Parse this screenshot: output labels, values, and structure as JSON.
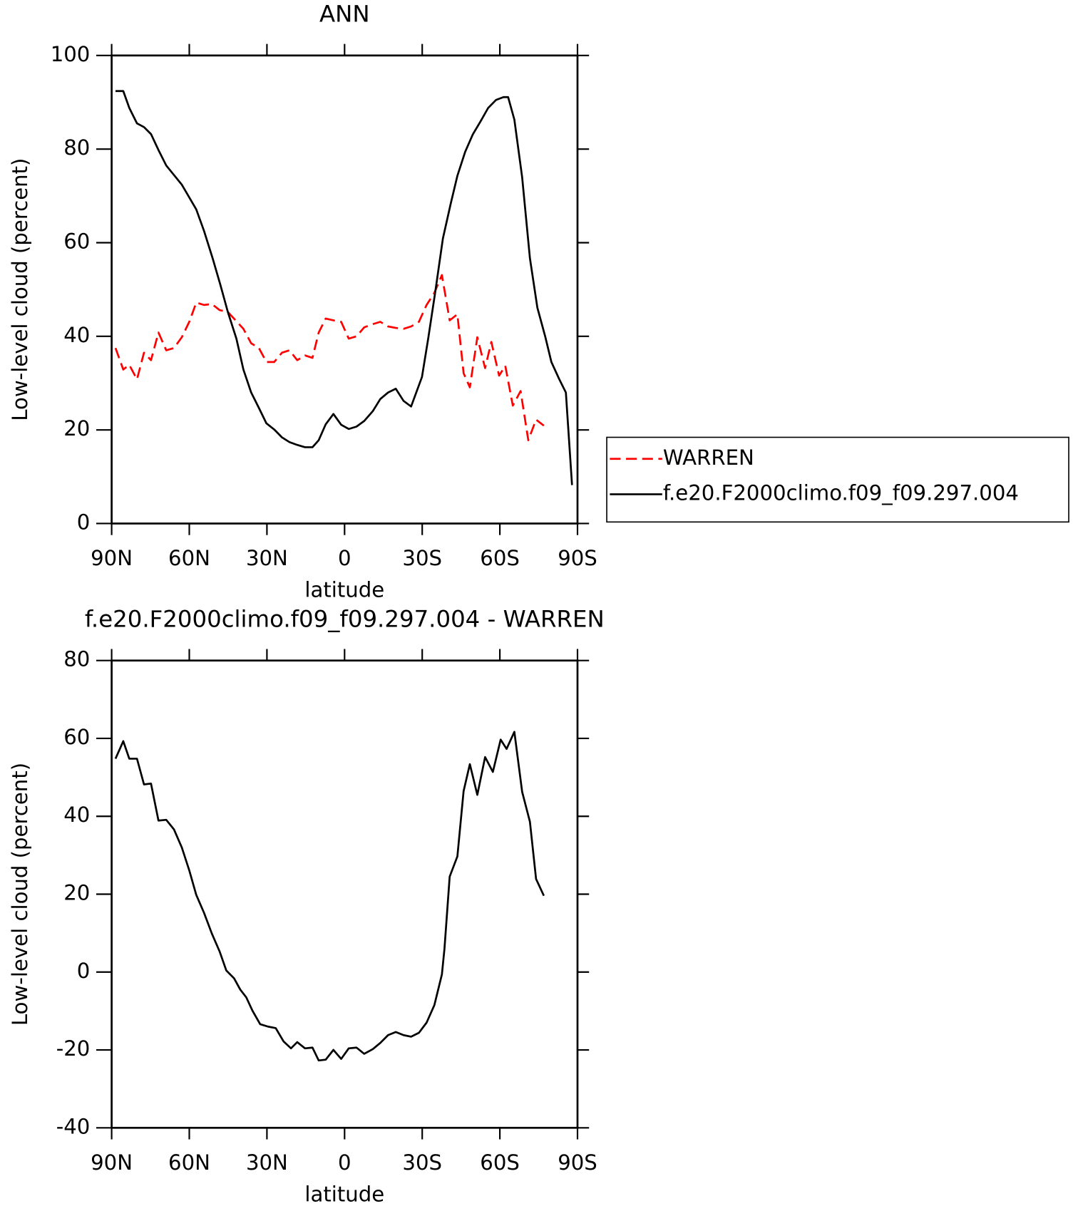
{
  "chart_data": [
    {
      "type": "line",
      "title": "ANN",
      "xlabel": "latitude",
      "ylabel": "Low-level cloud (percent)",
      "xlim": [
        90,
        -90
      ],
      "xticks": [
        {
          "value": 90,
          "label": "90N"
        },
        {
          "value": 60,
          "label": "60N"
        },
        {
          "value": 30,
          "label": "30N"
        },
        0,
        {
          "value": -30,
          "label": "30S"
        },
        {
          "value": -60,
          "label": "60S"
        },
        {
          "value": -90,
          "label": "90S"
        }
      ],
      "ylim": [
        0,
        100
      ],
      "yticks": [
        0,
        20,
        40,
        60,
        80,
        100
      ],
      "legend": "right",
      "series": [
        {
          "name": "WARREN",
          "color": "#ff0000",
          "dash": true,
          "x": [
            88.5,
            85.5,
            83.2,
            80.2,
            77.5,
            74.8,
            71.9,
            68.9,
            65.9,
            62.9,
            60.0,
            57.3,
            54.3,
            51.3,
            48.3,
            45.1,
            42.1,
            39.1,
            36.1,
            33.1,
            30.2,
            27.2,
            24.2,
            21.3,
            18.3,
            15.3,
            12.4,
            10.0,
            7.3,
            4.3,
            1.3,
            -1.6,
            -4.6,
            -7.6,
            -10.9,
            -13.8,
            -16.8,
            -19.8,
            -22.8,
            -25.7,
            -28.7,
            -31.7,
            -34.7,
            -37.6,
            -40.6,
            -43.6,
            -46.0,
            -48.4,
            -51.3,
            -54.3,
            -56.7,
            -59.7,
            -62.1,
            -65.0,
            -68.0,
            -71.0,
            -74.0,
            -77.0
          ],
          "values": [
            37.5,
            32.9,
            33.9,
            30.8,
            36.5,
            34.9,
            40.8,
            37.0,
            37.5,
            39.8,
            43.1,
            47.2,
            46.7,
            46.9,
            45.6,
            45.2,
            43.4,
            41.6,
            38.5,
            37.5,
            34.5,
            34.5,
            36.5,
            37.0,
            34.9,
            35.9,
            35.4,
            40.8,
            43.8,
            43.4,
            43.1,
            39.5,
            40.0,
            41.9,
            42.6,
            43.1,
            42.1,
            41.8,
            41.6,
            42.1,
            43.1,
            46.7,
            49.3,
            53.1,
            43.4,
            44.7,
            32.1,
            29.1,
            39.8,
            33.2,
            38.8,
            31.6,
            33.7,
            25.2,
            28.3,
            17.8,
            22.2,
            20.9
          ]
        },
        {
          "name": "f.e20.F2000climo.f09_f09.297.004",
          "color": "#000000",
          "dash": false,
          "x": [
            88.5,
            85.5,
            83.2,
            80.2,
            77.5,
            74.8,
            71.9,
            68.9,
            62.9,
            57.3,
            54.3,
            51.0,
            48.0,
            45.1,
            41.8,
            39.1,
            36.1,
            33.1,
            30.2,
            27.2,
            24.2,
            21.3,
            18.3,
            15.3,
            12.4,
            10.0,
            7.3,
            4.3,
            1.3,
            -1.6,
            -4.6,
            -7.6,
            -10.9,
            -13.8,
            -16.8,
            -19.8,
            -22.8,
            -25.7,
            -29.9,
            -32.3,
            -35.0,
            -38.0,
            -41.0,
            -43.6,
            -46.6,
            -49.5,
            -52.5,
            -55.5,
            -58.5,
            -61.4,
            -63.2,
            -65.6,
            -68.6,
            -71.6,
            -74.5,
            -77.5,
            -79.9,
            -82.9,
            -85.5,
            -87.9
          ],
          "values": [
            92.4,
            92.4,
            88.8,
            85.5,
            84.7,
            83.2,
            79.8,
            76.5,
            72.4,
            67.1,
            62.5,
            56.7,
            51.0,
            45.2,
            39.5,
            32.9,
            28.0,
            24.7,
            21.4,
            20.1,
            18.4,
            17.4,
            16.8,
            16.3,
            16.3,
            17.8,
            21.2,
            23.4,
            21.1,
            20.2,
            20.7,
            21.9,
            24.0,
            26.6,
            28.0,
            28.8,
            26.2,
            25.0,
            31.3,
            39.5,
            49.3,
            60.9,
            68.3,
            74.3,
            79.4,
            83.1,
            85.9,
            88.8,
            90.5,
            91.1,
            91.1,
            86.3,
            74.0,
            56.7,
            46.1,
            40.0,
            34.5,
            30.9,
            28.0,
            8.2
          ]
        }
      ]
    },
    {
      "type": "line",
      "title": "f.e20.F2000climo.f09_f09.297.004 - WARREN",
      "xlabel": "latitude",
      "ylabel": "Low-level cloud (percent)",
      "xlim": [
        90,
        -90
      ],
      "xticks": [
        {
          "value": 90,
          "label": "90N"
        },
        {
          "value": 60,
          "label": "60N"
        },
        {
          "value": 30,
          "label": "30N"
        },
        0,
        {
          "value": -30,
          "label": "30S"
        },
        {
          "value": -60,
          "label": "60S"
        },
        {
          "value": -90,
          "label": "90S"
        }
      ],
      "ylim": [
        -40,
        80
      ],
      "yticks": [
        -40,
        -20,
        0,
        20,
        40,
        60,
        80
      ],
      "color": "#000000",
      "x": [
        88.5,
        85.5,
        83.2,
        80.2,
        77.5,
        74.8,
        71.9,
        68.9,
        65.9,
        62.9,
        60.0,
        57.3,
        54.3,
        51.3,
        48.3,
        45.7,
        42.7,
        40.3,
        38.0,
        35.6,
        32.6,
        29.6,
        26.6,
        23.6,
        20.7,
        18.3,
        15.3,
        12.4,
        10.0,
        7.3,
        4.3,
        1.3,
        -1.6,
        -4.6,
        -7.6,
        -10.9,
        -13.8,
        -16.8,
        -19.8,
        -22.8,
        -25.7,
        -28.7,
        -31.7,
        -34.7,
        -37.6,
        -38.6,
        -40.6,
        -43.6,
        -46.0,
        -48.4,
        -51.3,
        -54.3,
        -57.3,
        -60.3,
        -62.6,
        -65.6,
        -68.6,
        -71.6,
        -74.0,
        -77.0
      ],
      "values": [
        54.8,
        59.3,
        54.8,
        54.8,
        48.2,
        48.4,
        38.9,
        39.1,
        36.6,
        32.0,
        26.1,
        19.8,
        15.2,
        9.9,
        5.3,
        0.4,
        -1.6,
        -4.5,
        -6.5,
        -9.9,
        -13.4,
        -14.0,
        -14.4,
        -17.8,
        -19.6,
        -18.0,
        -19.6,
        -19.4,
        -22.7,
        -22.5,
        -20.0,
        -22.3,
        -19.6,
        -19.4,
        -21.0,
        -19.8,
        -18.2,
        -16.2,
        -15.4,
        -16.2,
        -16.6,
        -15.6,
        -13.0,
        -8.5,
        -0.6,
        5.9,
        24.5,
        29.7,
        46.5,
        53.4,
        45.5,
        55.2,
        51.4,
        59.7,
        57.3,
        61.7,
        46.3,
        38.6,
        23.9,
        19.6
      ]
    }
  ]
}
